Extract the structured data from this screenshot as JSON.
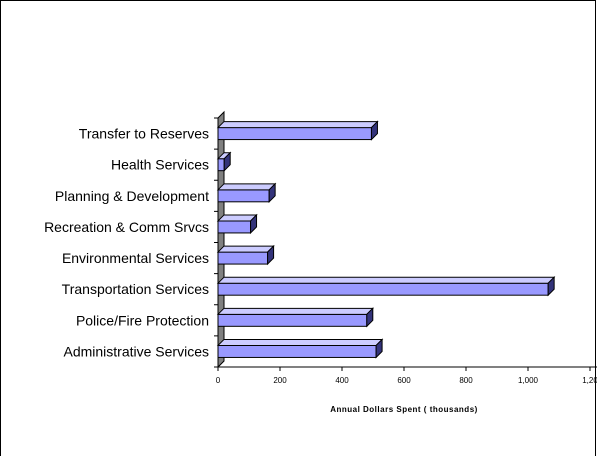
{
  "chart_data": {
    "type": "bar",
    "orientation": "horizontal",
    "style": "3d",
    "categories": [
      "Administrative Services",
      "Police/Fire Protection",
      "Transportation Services",
      "Environmental Services",
      "Recreation & Comm Srvcs",
      "Planning & Development",
      "Health Services",
      "Transfer to Reserves"
    ],
    "values": [
      510,
      480,
      1065,
      160,
      105,
      165,
      20,
      495
    ],
    "xlabel": "Annual Dollars Spent ( thousands)",
    "ylabel": "",
    "xlim": [
      0,
      1200
    ],
    "xticks": [
      "0",
      "200",
      "400",
      "600",
      "800",
      "1,000",
      "1,20"
    ],
    "grid": false,
    "legend": "none",
    "colors": {
      "bar_front": "#9999FF",
      "bar_top": "#CCCCFF",
      "bar_side": "#33337A",
      "wall": "#808080"
    }
  }
}
